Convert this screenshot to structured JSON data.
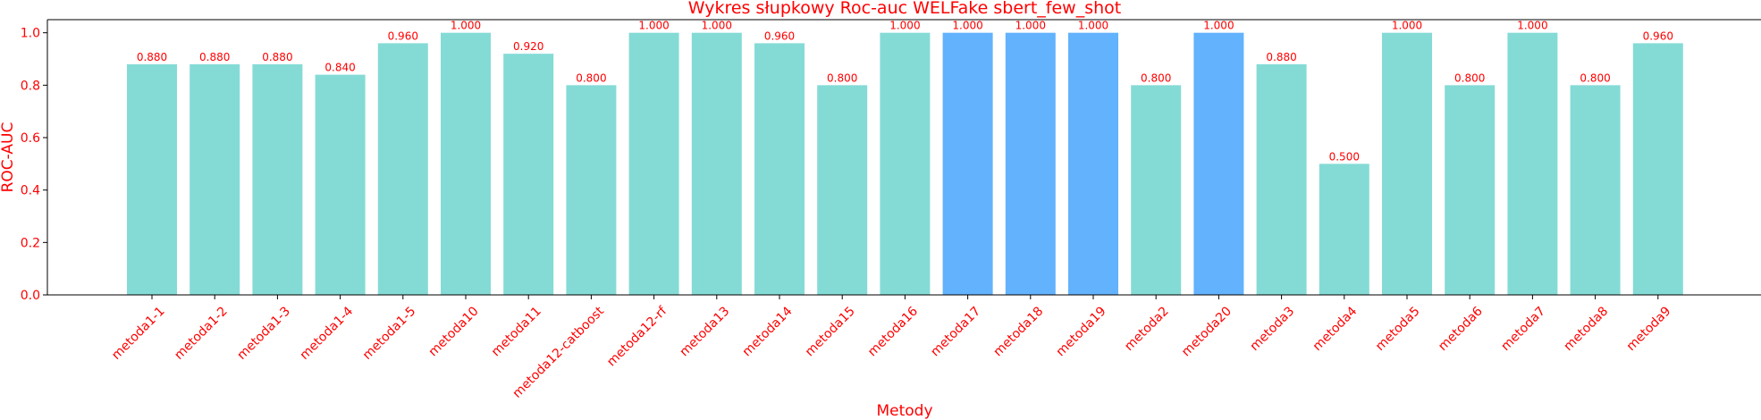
{
  "chart_data": {
    "type": "bar",
    "title": "Wykres słupkowy Roc-auc WELFake sbert_few_shot",
    "xlabel": "Metody",
    "ylabel": "ROC-AUC",
    "ylim": [
      0,
      1.05
    ],
    "yticks": [
      "0.0",
      "0.2",
      "0.4",
      "0.6",
      "0.8",
      "1.0"
    ],
    "grid": false,
    "text_color": "#ff0000",
    "colors": {
      "default": "#84dbd6",
      "highlight": "#62b2fd"
    },
    "categories": [
      "metoda1-1",
      "metoda1-2",
      "metoda1-3",
      "metoda1-4",
      "metoda1-5",
      "metoda10",
      "metoda11",
      "metoda12-catboost",
      "metoda12-rf",
      "metoda13",
      "metoda14",
      "metoda15",
      "metoda16",
      "metoda17",
      "metoda18",
      "metoda19",
      "metoda2",
      "metoda20",
      "metoda3",
      "metoda4",
      "metoda5",
      "metoda6",
      "metoda7",
      "metoda8",
      "metoda9"
    ],
    "values": [
      0.88,
      0.88,
      0.88,
      0.84,
      0.96,
      1.0,
      0.92,
      0.8,
      1.0,
      1.0,
      0.96,
      0.8,
      1.0,
      1.0,
      1.0,
      1.0,
      0.8,
      1.0,
      0.88,
      0.5,
      1.0,
      0.8,
      1.0,
      0.8,
      0.96
    ],
    "value_labels": [
      "0.880",
      "0.880",
      "0.880",
      "0.840",
      "0.960",
      "1.000",
      "0.920",
      "0.800",
      "1.000",
      "1.000",
      "0.960",
      "0.800",
      "1.000",
      "1.000",
      "1.000",
      "1.000",
      "0.800",
      "1.000",
      "0.880",
      "0.500",
      "1.000",
      "0.800",
      "1.000",
      "0.800",
      "0.960"
    ],
    "highlighted": [
      false,
      false,
      false,
      false,
      false,
      false,
      false,
      false,
      false,
      false,
      false,
      false,
      false,
      true,
      true,
      true,
      false,
      true,
      false,
      false,
      false,
      false,
      false,
      false,
      false
    ]
  }
}
